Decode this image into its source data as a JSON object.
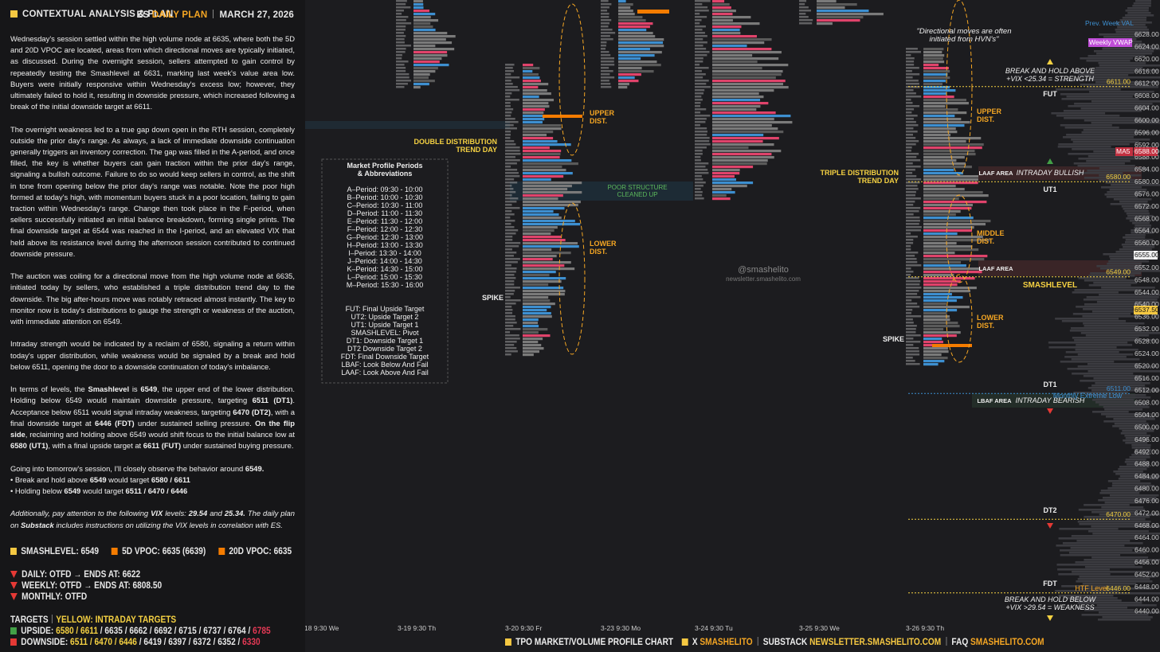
{
  "header": {
    "title": "CONTEXTUAL ANALYSIS & PLAN",
    "symbol": "ES",
    "plan": "DAILY PLAN",
    "date": "MARCH 27, 2026"
  },
  "paragraphs": [
    [
      "Wednesday's session settled within the high volume node at 6635, where both the 5D and 20D VPOC are located, areas from which directional moves are typically initiated, as discussed. During the overnight session, sellers attempted to gain control by repeatedly testing the Smashlevel at 6631, marking last week's value area low. Buyers were initially responsive within Wednesday's excess low; however, they ultimately failed to hold it, resulting in downside pressure, which increased following a break of the initial downside target at 6611."
    ],
    [
      "The overnight weakness led to a true gap down open in the RTH session, completely outside the prior day's range. As always, a lack of immediate downside continuation generally triggers an inventory correction. The gap was filled in the A-period, and once filled, the key is whether buyers can gain traction within the prior day's range, signaling a bullish outcome. Failure to do so would keep sellers in control, as the shift in tone from opening below the prior day's range was notable. Note the poor high formed at today's high, with momentum buyers stuck in a poor location, failing to gain traction within Wednesday's range. Change then took place in the F-period, when sellers successfully initiated an initial balance breakdown, forming single prints. The final downside target at 6544 was reached in the I-period, and an elevated VIX that held above its resistance level during the afternoon session contributed to continued downside pressure."
    ],
    [
      "The auction was coiling for a directional move from the high volume node at 6635, initiated today by sellers, who established a triple distribution trend day to the downside. The big after-hours move was notably retraced almost instantly. The key to monitor now is today's distributions to gauge the strength or weakness of the auction, with immediate attention on 6549."
    ],
    [
      "Intraday strength would be indicated by a reclaim of 6580, signaling a return within today's upper distribution, while weakness would be signaled by a break and hold below 6511, opening the door to a downside continuation of today's imbalance."
    ],
    [
      "In terms of levels, the ",
      "Smashlevel",
      " is ",
      "6549",
      ", the upper end of the lower distribution. Holding below 6549 would maintain downside pressure, targeting ",
      "6511 (DT1)",
      ". Acceptance below 6511 would signal intraday weakness, targeting ",
      "6470 (DT2)",
      ", with a final downside target at ",
      "6446 (FDT)",
      " under sustained selling pressure. ",
      "On the flip side",
      ", reclaiming and holding above 6549 would shift focus to the initial balance low at ",
      "6580 (UT1)",
      ", with a final upside target at ",
      "6611 (FUT)",
      " under sustained buying pressure."
    ],
    [
      "Going into tomorrow's session, I'll closely observe the behavior around ",
      "6549."
    ],
    [
      "• Break and hold above ",
      "6549",
      " would target ",
      "6580 / 6611"
    ],
    [
      "• Holding below ",
      "6549",
      " would target ",
      "6511 / 6470 / 6446"
    ],
    [
      "Additionally, pay attention to the following ",
      "VIX",
      " levels: ",
      "29.54",
      " and ",
      "25.34.",
      " The daily plan on ",
      "Substack",
      " includes instructions on utilizing the VIX levels in correlation with ES."
    ]
  ],
  "levels": {
    "smashlevel": "SMASHLEVEL: 6549",
    "vpoc5": "5D VPOC: 6635 (6639)",
    "vpoc20": "20D VPOC: 6635"
  },
  "trends": [
    "DAILY: OTFD → ENDS AT: 6622",
    "WEEKLY: OTFD → ENDS AT: 6808.50",
    "MONTHLY: OTFD"
  ],
  "targets": {
    "title": "TARGETS",
    "note": "YELLOW: INTRADAY TARGETS",
    "upside": {
      "label": "UPSIDE:",
      "yellow": "6580 / 6611",
      "white": " / 6635 / 6662 / 6692 / 6715 / 6737 / 6764 / ",
      "red": "6785"
    },
    "downside": {
      "label": "DOWNSIDE:",
      "yellow": "6511 / 6470 / 6446",
      "white": " / 6419 / 6397 / 6372 / 6352 / ",
      "red": "6330"
    }
  },
  "legend_box": [
    "Market Profile Periods",
    "& Abbreviations",
    "A–Period: 09:30 - 10:00",
    "B–Period: 10:00 - 10:30",
    "C–Period: 10:30 - 11:00",
    "D–Period: 11:00 - 11:30",
    "E–Period: 11:30 - 12:00",
    "F–Period: 12:00 - 12:30",
    "G–Period: 12:30 - 13:00",
    "H–Period: 13:00 - 13:30",
    "I–Period: 13:30 - 14:00",
    "J–Period: 14:00 - 14:30",
    "K–Period: 14:30 - 15:00",
    "L–Period: 15:00 - 15:30",
    "M–Period: 15:30 - 16:00",
    "FUT: Final Upside Target",
    "UT2: Upside Target 2",
    "UT1: Upside Target 1",
    "SMASHLEVEL: Pivot",
    "DT1: Downside Target 1",
    "DT2 Downside Target 2",
    "FDT: Final Downside Target",
    "LBAF: Look Below And Fail",
    "LAAF: Look Above And Fail"
  ],
  "annotations": [
    "DOUBLE DISTRIBUTION",
    "TREND DAY",
    "UPPER",
    "DIST.",
    "POOR STRUCTURE",
    "CLEANED UP",
    "LOWER",
    "DIST.",
    "SPIKE",
    "@smashelito",
    "newsletter.smashelito.com",
    "\"Directional moves are often",
    "initiated from HVN's\"",
    "BREAK AND HOLD ABOVE",
    "+VIX <25.34 = STRENGTH",
    "FUT",
    "UPPER",
    "DIST.",
    "TRIPLE DISTRIBUTION",
    "TREND DAY",
    "LAAF AREA",
    "INTRADAY BULLISH",
    "UT1",
    "MIDDLE",
    "DIST.",
    "LAAF AREA",
    "SMASHLEVEL",
    "LOWER",
    "DIST.",
    "SPIKE",
    "DT1",
    "LBAF AREA",
    "INTRADAY BEARISH",
    "Monthly Extreme Low",
    "DT2",
    "FDT",
    "HTF Level",
    "BREAK AND HOLD BELOW",
    "+VIX >29.54 = WEAKNESS"
  ],
  "level_lines": [
    "6611.00",
    "6580.00",
    "6549.00",
    "6511.00",
    "6470.00",
    "6446.00"
  ],
  "price_axis": [
    "6628.00",
    "6624.00",
    "6620.00",
    "6616.00",
    "6612.00",
    "6608.00",
    "6604.00",
    "6600.00",
    "6596.00",
    "6592.00",
    "6588.00",
    "6584.00",
    "6580.00",
    "6576.00",
    "6572.00",
    "6568.00",
    "6564.00",
    "6560.00",
    "6556.00",
    "6552.00",
    "6548.00",
    "6544.00",
    "6540.00",
    "6536.00",
    "6532.00",
    "6528.00",
    "6524.00",
    "6520.00",
    "6516.00",
    "6512.00",
    "6508.00",
    "6504.00",
    "6500.00",
    "6496.00",
    "6492.00",
    "6488.00",
    "6484.00",
    "6480.00",
    "6476.00",
    "6472.00",
    "6468.00",
    "6464.00",
    "6460.00",
    "6456.00",
    "6452.00",
    "6448.00",
    "6444.00",
    "6440.00"
  ],
  "price_tags": [
    "Prev. Week VAL",
    "Weekly VWAP",
    "MA5",
    "6588.00",
    "6555.00",
    "6537.50"
  ],
  "dates": [
    "18  9:30 We",
    "3-19  9:30 Th",
    "3-20  9:30 Fr",
    "3-23  9:30 Mo",
    "3-24  9:30 Tu",
    "3-25  9:30 We",
    "3-26  9:30 Th"
  ],
  "footer": {
    "chart": "TPO MARKET/VOLUME PROFILE CHART",
    "x": "X",
    "handle": "SMASHELITO",
    "substack": "SUBSTACK",
    "newsletter": "NEWSLETTER.SMASHELITO.COM",
    "faq": "FAQ",
    "site": "SMASHELITO.COM"
  }
}
